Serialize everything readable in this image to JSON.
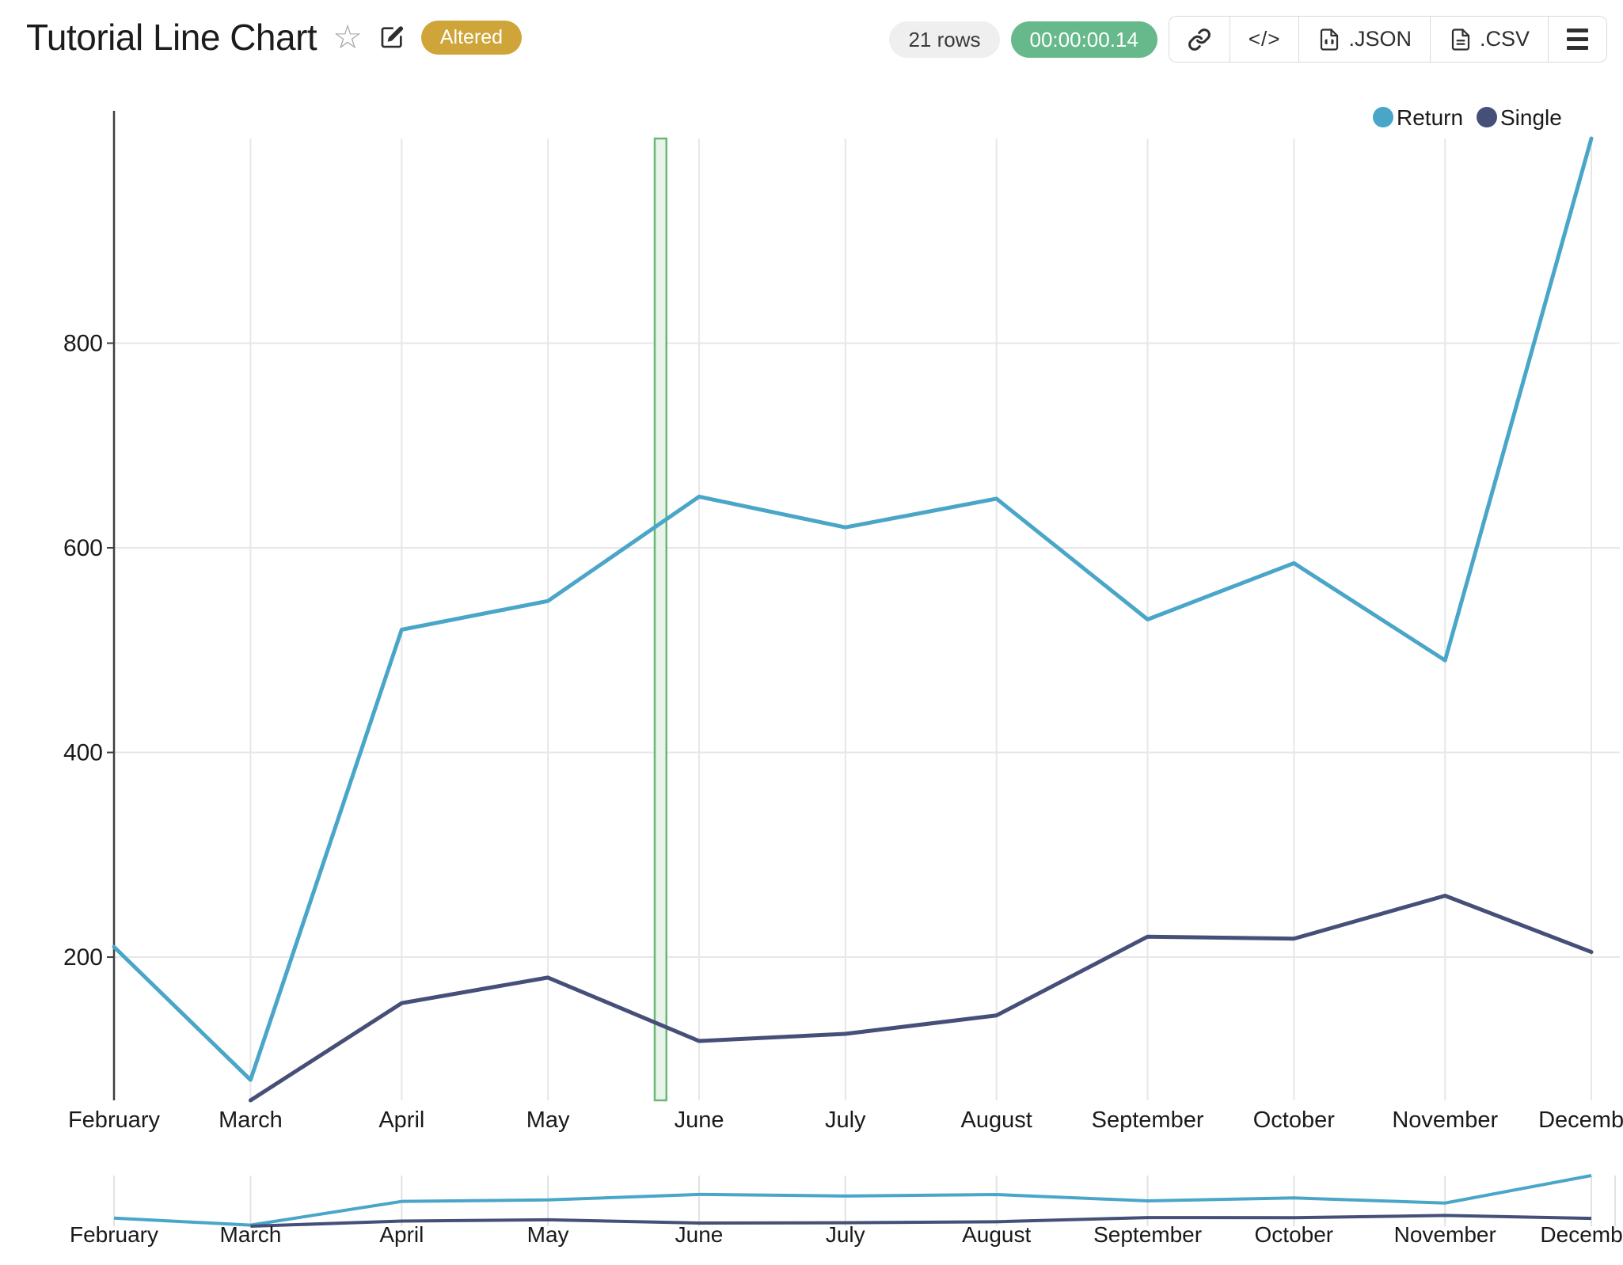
{
  "header": {
    "title": "Tutorial Line Chart",
    "badge": "Altered",
    "rows_label": "21 rows",
    "runtime": "00:00:00.14",
    "embed_label": "</>",
    "export_json": ".JSON",
    "export_csv": ".CSV"
  },
  "icons": {
    "star": "favorite-star",
    "edit": "edit-pencil",
    "link": "share-link",
    "code": "embed-code",
    "json_file": "json-file",
    "csv_file": "csv-file",
    "menu": "hamburger-menu"
  },
  "colors": {
    "return_line": "#4aa6c8",
    "single_line": "#454f78",
    "badge_bg": "#cfa53a",
    "runtime_bg": "#67b98b",
    "highlight_fill": "#e8f3e9",
    "highlight_border": "#6ab877",
    "grid": "#e7e7e7",
    "axis": "#3d3d3d"
  },
  "chart_data": {
    "type": "line",
    "title": "Tutorial Line Chart",
    "categories": [
      "February",
      "March",
      "April",
      "May",
      "June",
      "July",
      "August",
      "September",
      "October",
      "November",
      "December"
    ],
    "x_days": [
      0,
      28,
      59,
      89,
      120,
      150,
      181,
      212,
      242,
      273,
      303
    ],
    "series": [
      {
        "name": "Return",
        "color": "#4aa6c8",
        "values": [
          210,
          80,
          520,
          548,
          650,
          620,
          648,
          530,
          585,
          490,
          1000
        ]
      },
      {
        "name": "Single",
        "color": "#454f78",
        "values": [
          null,
          60,
          155,
          180,
          118,
          125,
          143,
          220,
          218,
          260,
          205
        ]
      }
    ],
    "y_ticks": [
      200,
      400,
      600,
      800
    ],
    "ylim": [
      60,
      1000
    ],
    "grid": true,
    "legend_position": "top-right",
    "highlight_region": {
      "start_day": 110.9,
      "end_day": 113.3
    },
    "range_selector": true
  }
}
